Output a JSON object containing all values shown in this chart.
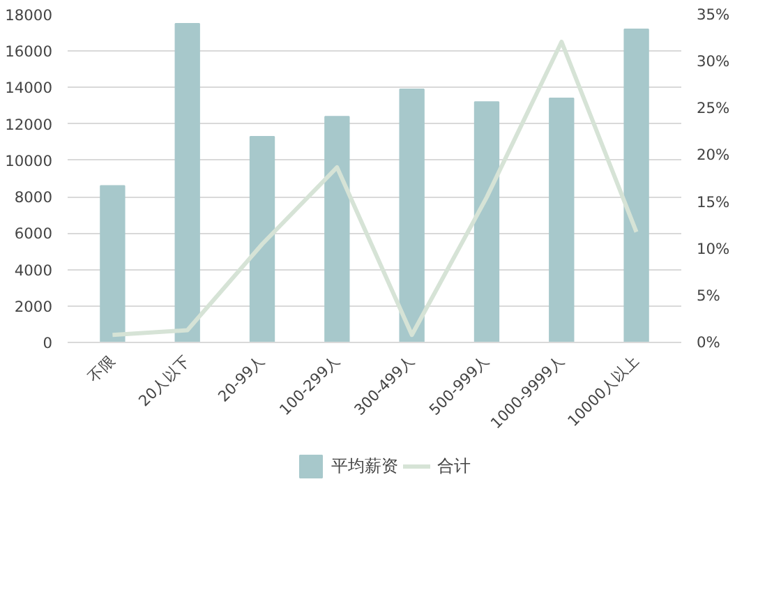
{
  "chart_data": {
    "type": "bar",
    "categories": [
      "不限",
      "20人以下",
      "20-99人",
      "100-299人",
      "300-499人",
      "500-999人",
      "1000-9999人",
      "10000人以上"
    ],
    "series": [
      {
        "name": "平均薪资",
        "color": "#a7c8cb",
        "values": [
          8600,
          17500,
          11300,
          12400,
          13900,
          13200,
          13400,
          17200
        ]
      },
      {
        "name": "合计",
        "type": "line",
        "axis": "y2",
        "color": "#d6e3d6",
        "values": [
          0.8,
          1.3,
          10.5,
          18.7,
          0.8,
          15.5,
          32.1,
          11.8
        ]
      }
    ],
    "ylim": [
      0,
      18000
    ],
    "yticks": [
      0,
      2000,
      4000,
      6000,
      8000,
      10000,
      12000,
      14000,
      16000,
      18000
    ],
    "y2lim": [
      0,
      35
    ],
    "y2ticks": [
      {
        "value": 0,
        "label": "0%"
      },
      {
        "value": 5,
        "label": "5%"
      },
      {
        "value": 10,
        "label": "10%"
      },
      {
        "value": 15,
        "label": "15%"
      },
      {
        "value": 20,
        "label": "20%"
      },
      {
        "value": 25,
        "label": "25%"
      },
      {
        "value": 30,
        "label": "30%"
      },
      {
        "value": 35,
        "label": "35%"
      }
    ],
    "grid": "y",
    "legend": "bottom"
  }
}
